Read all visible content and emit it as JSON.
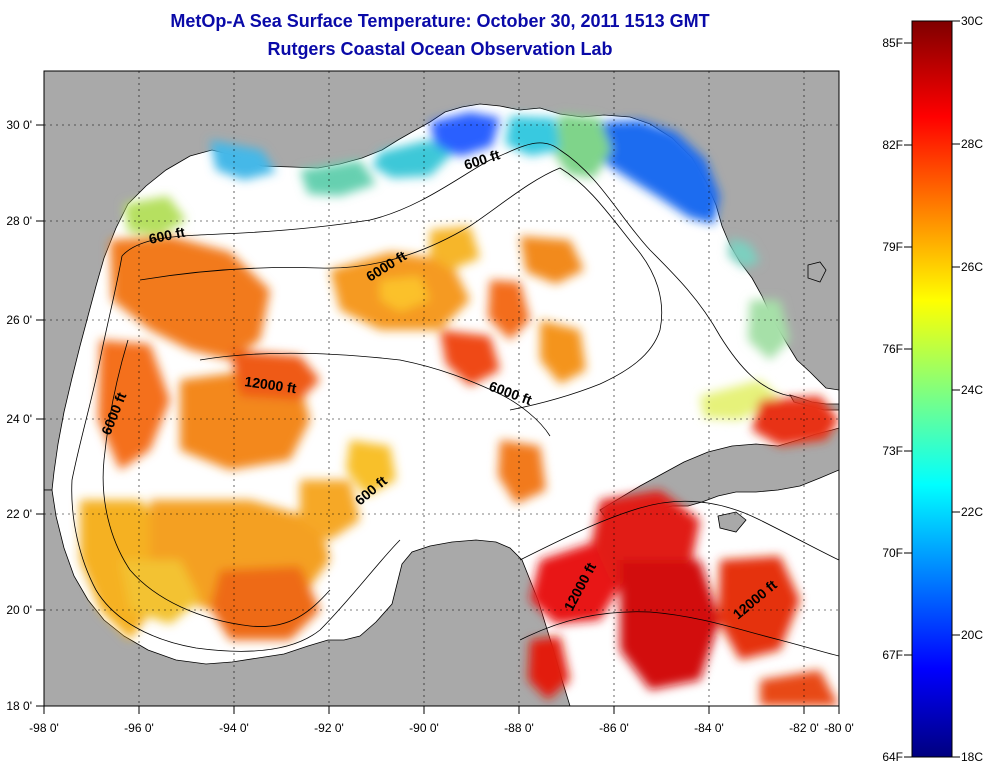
{
  "title": "MetOp-A Sea Surface Temperature:  October 30, 2011 1513 GMT",
  "subtitle": "Rutgers Coastal Ocean Observation Lab",
  "x_ticks": [
    "-98 0'",
    "-96 0'",
    "-94 0'",
    "-92 0'",
    "-90 0'",
    "-88 0'",
    "-86 0'",
    "-84 0'",
    "-82 0'",
    "-80 0'"
  ],
  "y_ticks": [
    "30 0'",
    "28 0'",
    "26 0'",
    "24 0'",
    "22 0'",
    "20 0'",
    "18 0'"
  ],
  "contour_labels": [
    "600 ft",
    "600 ft",
    "6000 ft",
    "6000 ft",
    "12000 ft",
    "6000 ft",
    "600 ft",
    "12000 ft",
    "12000 ft"
  ],
  "colorbar": {
    "fahrenheit": [
      "85F",
      "82F",
      "79F",
      "76F",
      "73F",
      "70F",
      "67F",
      "64F"
    ],
    "celsius": [
      "30C",
      "28C",
      "26C",
      "24C",
      "22C",
      "20C",
      "18C"
    ]
  },
  "colors": {
    "land": "#a9a9a9",
    "title": "#0a0aa8",
    "cloud": "#ffffff"
  }
}
